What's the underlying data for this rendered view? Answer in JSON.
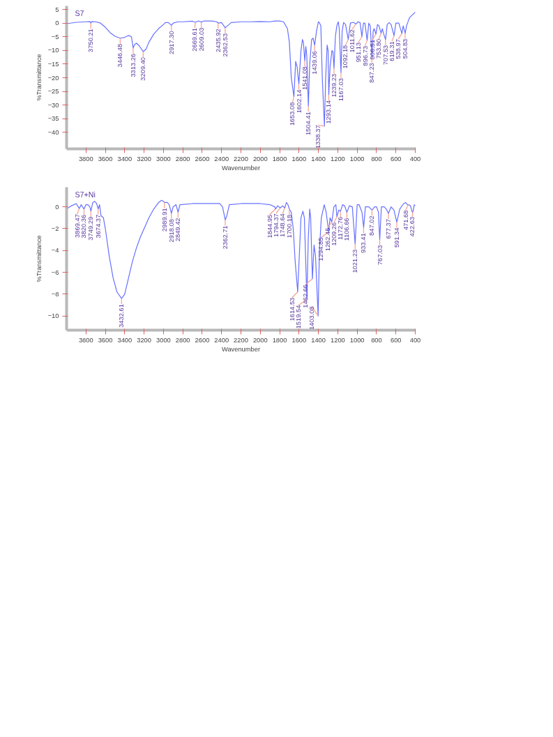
{
  "chart_data": [
    {
      "type": "line",
      "xlabel": "Wavenumber",
      "ylabel": "%Transmittance",
      "xlim": [
        4000,
        400
      ],
      "xticks": [
        3800,
        3600,
        3400,
        3200,
        3000,
        2800,
        2600,
        2400,
        2200,
        2000,
        1800,
        1600,
        1400,
        1200,
        1000,
        800,
        600,
        400
      ],
      "ylim": [
        -46,
        6.3
      ],
      "yticks": [
        5,
        0,
        -5,
        -10,
        -15,
        -20,
        -25,
        -30,
        -35,
        -40
      ],
      "grid": false,
      "series": [
        {
          "name": "S7",
          "color": "#6670ff",
          "x": [
            4000,
            3900,
            3800,
            3760,
            3750,
            3740,
            3700,
            3650,
            3600,
            3550,
            3500,
            3446,
            3400,
            3360,
            3330,
            3313,
            3300,
            3280,
            3250,
            3209,
            3180,
            3150,
            3100,
            3050,
            3000,
            2980,
            2950,
            2917,
            2900,
            2850,
            2800,
            2700,
            2669,
            2640,
            2609,
            2580,
            2500,
            2450,
            2435,
            2400,
            2362,
            2340,
            2300,
            2200,
            2100,
            2000,
            1900,
            1850,
            1800,
            1760,
            1720,
            1700,
            1680,
            1653,
            1635,
            1620,
            1602,
            1580,
            1565,
            1555,
            1541,
            1530,
            1520,
            1504,
            1490,
            1470,
            1455,
            1439,
            1420,
            1400,
            1390,
            1375,
            1360,
            1338,
            1325,
            1310,
            1300,
            1293,
            1280,
            1260,
            1250,
            1239,
            1225,
            1210,
            1195,
            1185,
            1167,
            1155,
            1140,
            1120,
            1092,
            1070,
            1040,
            1011,
            990,
            970,
            951,
            935,
            920,
            897,
            880,
            865,
            847,
            835,
            825,
            806,
            790,
            775,
            753,
            740,
            730,
            707,
            690,
            670,
            650,
            619,
            600,
            570,
            538,
            525,
            504,
            490,
            460,
            430,
            400
          ],
          "values": [
            -0.2,
            0.3,
            0.5,
            0.6,
            0,
            0.6,
            0.5,
            0,
            -1.5,
            -3.5,
            -4.8,
            -5.5,
            -5.2,
            -4.5,
            -5,
            -9.1,
            -8,
            -7.3,
            -8.3,
            -10.4,
            -9.5,
            -7,
            -4,
            -2,
            -0.5,
            0.2,
            0.2,
            -0.8,
            0,
            0.5,
            0.5,
            0.7,
            0.3,
            0.8,
            0.4,
            0.8,
            0.8,
            0.5,
            0,
            0.2,
            -1.7,
            -1,
            0.2,
            0.5,
            0.5,
            0.6,
            0.5,
            0.8,
            0.8,
            0.5,
            -2,
            -7,
            -20,
            -26.9,
            -14,
            -16,
            -22.3,
            -10,
            -6,
            -7,
            -13.8,
            -8.5,
            -12,
            -30.4,
            -15,
            -6,
            -5.5,
            -8.1,
            -3,
            0.5,
            0.2,
            -1,
            -20,
            -37.7,
            -20,
            -8,
            -10,
            -26.2,
            -16,
            -10,
            -10.5,
            -16.5,
            -5,
            -1,
            0.5,
            -2,
            -18.1,
            -3,
            0.2,
            -0.5,
            -6,
            0,
            0.3,
            -0.3,
            0.5,
            0.2,
            -5,
            0,
            0,
            -6.3,
            0,
            -1,
            -12.5,
            -3,
            -2,
            -4,
            -0.5,
            -1,
            -3.7,
            -2,
            -3.5,
            -6,
            -0.5,
            0.2,
            -0.5,
            -4.6,
            0,
            0,
            -3.8,
            -1,
            -3.7,
            -1,
            2,
            3,
            4
          ]
        }
      ],
      "annotations": [
        {
          "text": "3750.21",
          "x": 3750.21,
          "y": 0
        },
        {
          "text": "3446.48",
          "x": 3446.48,
          "y": -5.5
        },
        {
          "text": "3313.26",
          "x": 3313.26,
          "y": -9.1
        },
        {
          "text": "3209.40",
          "x": 3209.4,
          "y": -10.4
        },
        {
          "text": "2917.30",
          "x": 2917.3,
          "y": -0.8
        },
        {
          "text": "2669.61",
          "x": 2669.61,
          "y": 0.3
        },
        {
          "text": "2609.03",
          "x": 2609.03,
          "y": 0.4
        },
        {
          "text": "2435.92",
          "x": 2435.92,
          "y": 0
        },
        {
          "text": "2362.53",
          "x": 2362.53,
          "y": -1.7
        },
        {
          "text": "1653.08",
          "x": 1653.08,
          "y": -26.9
        },
        {
          "text": "1602.14",
          "x": 1602.14,
          "y": -22.3
        },
        {
          "text": "1541.08",
          "x": 1541.08,
          "y": -13.8
        },
        {
          "text": "1504.41",
          "x": 1504.41,
          "y": -30.4
        },
        {
          "text": "1439.06",
          "x": 1439.06,
          "y": -8.1
        },
        {
          "text": "1338.37",
          "x": 1338.37,
          "y": -37.7
        },
        {
          "text": "1293.14",
          "x": 1293.14,
          "y": -26.2
        },
        {
          "text": "1239.23",
          "x": 1239.23,
          "y": -16.5
        },
        {
          "text": "1167.03",
          "x": 1167.03,
          "y": -18.1
        },
        {
          "text": "1092.18",
          "x": 1092.18,
          "y": -6
        },
        {
          "text": "1011.62",
          "x": 1011.62,
          "y": -0.3
        },
        {
          "text": "951.13",
          "x": 951.13,
          "y": -5
        },
        {
          "text": "896.73",
          "x": 896.73,
          "y": -6.3
        },
        {
          "text": "847.23",
          "x": 847.23,
          "y": -12.5
        },
        {
          "text": "806.51",
          "x": 806.51,
          "y": -4
        },
        {
          "text": "753.80",
          "x": 753.8,
          "y": -3.7
        },
        {
          "text": "707.53",
          "x": 707.53,
          "y": -6
        },
        {
          "text": "619.31",
          "x": 619.31,
          "y": -4.6
        },
        {
          "text": "538.97",
          "x": 538.97,
          "y": -3.8
        },
        {
          "text": "504.83",
          "x": 504.83,
          "y": -3.7
        }
      ]
    },
    {
      "type": "line",
      "xlabel": "Wavenumber",
      "ylabel": "%Transmittance",
      "xlim": [
        4000,
        400
      ],
      "xticks": [
        3800,
        3600,
        3400,
        3200,
        3000,
        2800,
        2600,
        2400,
        2200,
        2000,
        1800,
        1600,
        1400,
        1200,
        1000,
        800,
        600,
        400
      ],
      "ylim": [
        -11.3,
        1.8
      ],
      "yticks": [
        0,
        -2,
        -4,
        -6,
        -8,
        -10
      ],
      "grid": false,
      "series": [
        {
          "name": "S7+Ni",
          "color": "#6670ff",
          "x": [
            4000,
            3950,
            3900,
            3880,
            3869,
            3850,
            3820,
            3800,
            3780,
            3760,
            3749,
            3730,
            3710,
            3690,
            3674,
            3660,
            3645,
            3620,
            3600,
            3560,
            3520,
            3480,
            3432,
            3400,
            3360,
            3320,
            3280,
            3240,
            3200,
            3150,
            3100,
            3050,
            3020,
            3000,
            2989,
            2960,
            2940,
            2918,
            2900,
            2870,
            2849,
            2830,
            2700,
            2500,
            2420,
            2390,
            2362,
            2345,
            2320,
            2200,
            2000,
            1900,
            1850,
            1844,
            1820,
            1794,
            1770,
            1748,
            1730,
            1715,
            1700,
            1680,
            1660,
            1640,
            1614,
            1600,
            1580,
            1560,
            1545,
            1519,
            1505,
            1490,
            1480,
            1462,
            1445,
            1430,
            1403,
            1390,
            1370,
            1340,
            1320,
            1294,
            1280,
            1262,
            1240,
            1220,
            1209,
            1190,
            1172,
            1150,
            1130,
            1106,
            1080,
            1050,
            1021,
            1000,
            980,
            950,
            933,
            915,
            880,
            847,
            820,
            800,
            780,
            767,
            750,
            720,
            700,
            677,
            650,
            620,
            591,
            560,
            520,
            500,
            480,
            471,
            450,
            430,
            422,
            410,
            400
          ],
          "values": [
            -0.2,
            0.1,
            0.3,
            0,
            -0.16,
            0.2,
            -0.2,
            0.2,
            0.2,
            0,
            -0.4,
            0.4,
            0.5,
            0.3,
            -0.2,
            0.2,
            -0.8,
            -1,
            -2,
            -4.5,
            -6.5,
            -7.8,
            -8.4,
            -8,
            -6.5,
            -5,
            -3.8,
            -2.8,
            -2,
            -1,
            -0.2,
            0.4,
            0.6,
            0.5,
            0.4,
            0.4,
            0.2,
            -0.6,
            0,
            0.2,
            -0.5,
            0.2,
            0.3,
            0.3,
            0.3,
            0,
            -1.2,
            -0.8,
            0.2,
            0.3,
            0.3,
            0.2,
            0,
            -0.2,
            0.1,
            -0.1,
            0.1,
            -0.1,
            0.4,
            0.2,
            -0.2,
            -0.5,
            -2,
            -5,
            -7.8,
            -5,
            -1,
            -0.4,
            -1,
            -8.5,
            -3,
            -0.2,
            -1,
            -6.6,
            -3.5,
            -4.5,
            -10,
            -4,
            -1,
            0.2,
            -0.5,
            -2.3,
            -1,
            -1.4,
            0,
            0.2,
            -0.9,
            -0.3,
            -0.4,
            0.2,
            0.1,
            -0.5,
            0.1,
            0,
            -3.4,
            0.2,
            0.2,
            -0.5,
            -1.9,
            0,
            0,
            -0.3,
            0,
            0,
            -0.5,
            -3,
            0,
            0,
            -0.2,
            -0.6,
            0,
            -0.3,
            -1.4,
            -0.2,
            0.3,
            0.4,
            0.2,
            0.2,
            0.1,
            -0.5,
            -0.4,
            0.2,
            0.1
          ]
        }
      ],
      "annotations": [
        {
          "text": "3869.47",
          "x": 3869.47,
          "y": -0.16
        },
        {
          "text": "3820.36",
          "x": 3820.36,
          "y": -0.2
        },
        {
          "text": "3749.29",
          "x": 3749.29,
          "y": -0.4
        },
        {
          "text": "3674.37",
          "x": 3674.37,
          "y": -0.2
        },
        {
          "text": "3432.61",
          "x": 3432.61,
          "y": -8.4
        },
        {
          "text": "2989.91",
          "x": 2989.91,
          "y": 0.4
        },
        {
          "text": "2918.08",
          "x": 2918.08,
          "y": -0.6
        },
        {
          "text": "2849.42",
          "x": 2849.42,
          "y": -0.5
        },
        {
          "text": "2362.71",
          "x": 2362.71,
          "y": -1.2
        },
        {
          "text": "1844.95",
          "x": 1844.95,
          "y": -0.2
        },
        {
          "text": "1794.37",
          "x": 1794.37,
          "y": -0.1
        },
        {
          "text": "1748.64",
          "x": 1748.64,
          "y": -0.1
        },
        {
          "text": "1700.18",
          "x": 1700.18,
          "y": -0.2
        },
        {
          "text": "1614.53",
          "x": 1614.53,
          "y": -7.8
        },
        {
          "text": "1519.54",
          "x": 1519.54,
          "y": -8.5
        },
        {
          "text": "1462.66",
          "x": 1462.66,
          "y": -6.6
        },
        {
          "text": "1403.08",
          "x": 1403.08,
          "y": -10
        },
        {
          "text": "1294.85",
          "x": 1294.85,
          "y": -2.3
        },
        {
          "text": "1262.45",
          "x": 1262.45,
          "y": -1.4
        },
        {
          "text": "1209.26",
          "x": 1209.26,
          "y": -0.9
        },
        {
          "text": "1172.76",
          "x": 1172.76,
          "y": -0.4
        },
        {
          "text": "1106.66",
          "x": 1106.66,
          "y": -0.5
        },
        {
          "text": "1021.23",
          "x": 1021.23,
          "y": -3.4
        },
        {
          "text": "933.41",
          "x": 933.41,
          "y": -1.9
        },
        {
          "text": "847.02",
          "x": 847.02,
          "y": -0.3
        },
        {
          "text": "767.03",
          "x": 767.03,
          "y": -3
        },
        {
          "text": "677.37",
          "x": 677.37,
          "y": -0.6
        },
        {
          "text": "591.34",
          "x": 591.34,
          "y": -1.4
        },
        {
          "text": "471.68",
          "x": 471.68,
          "y": 0.2
        },
        {
          "text": "422.63",
          "x": 422.63,
          "y": -0.4
        }
      ]
    }
  ]
}
